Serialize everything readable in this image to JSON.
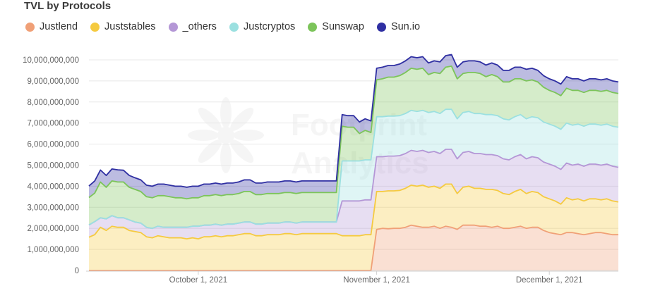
{
  "chart_data": {
    "type": "area",
    "title": "TVL by Protocols",
    "xlabel": "",
    "ylabel": "",
    "ylim": [
      0,
      10500000000
    ],
    "y_ticks": [
      "0",
      "1,000,000,000",
      "2,000,000,000",
      "3,000,000,000",
      "4,000,000,000",
      "5,000,000,000",
      "6,000,000,000",
      "7,000,000,000",
      "8,000,000,000",
      "9,000,000,000",
      "10,000,000,000"
    ],
    "x_ticks": [
      "October 1, 2021",
      "November 1, 2021",
      "December 1, 2021"
    ],
    "x_tick_values": [
      "2021-10-01",
      "2021-11-01",
      "2021-12-01"
    ],
    "x": [
      "2021-09-12",
      "2021-09-13",
      "2021-09-14",
      "2021-09-15",
      "2021-09-16",
      "2021-09-17",
      "2021-09-18",
      "2021-09-19",
      "2021-09-20",
      "2021-09-21",
      "2021-09-22",
      "2021-09-23",
      "2021-09-24",
      "2021-09-25",
      "2021-09-26",
      "2021-09-27",
      "2021-09-28",
      "2021-09-29",
      "2021-09-30",
      "2021-10-01",
      "2021-10-02",
      "2021-10-03",
      "2021-10-04",
      "2021-10-05",
      "2021-10-06",
      "2021-10-07",
      "2021-10-08",
      "2021-10-09",
      "2021-10-10",
      "2021-10-11",
      "2021-10-12",
      "2021-10-13",
      "2021-10-14",
      "2021-10-15",
      "2021-10-16",
      "2021-10-17",
      "2021-10-18",
      "2021-10-19",
      "2021-10-20",
      "2021-10-21",
      "2021-10-22",
      "2021-10-23",
      "2021-10-24",
      "2021-10-25",
      "2021-10-26",
      "2021-10-27",
      "2021-10-28",
      "2021-10-29",
      "2021-10-30",
      "2021-10-31",
      "2021-11-01",
      "2021-11-02",
      "2021-11-03",
      "2021-11-04",
      "2021-11-05",
      "2021-11-06",
      "2021-11-07",
      "2021-11-08",
      "2021-11-09",
      "2021-11-10",
      "2021-11-11",
      "2021-11-12",
      "2021-11-13",
      "2021-11-14",
      "2021-11-15",
      "2021-11-16",
      "2021-11-17",
      "2021-11-18",
      "2021-11-19",
      "2021-11-20",
      "2021-11-21",
      "2021-11-22",
      "2021-11-23",
      "2021-11-24",
      "2021-11-25",
      "2021-11-26",
      "2021-11-27",
      "2021-11-28",
      "2021-11-29",
      "2021-11-30",
      "2021-12-01",
      "2021-12-02",
      "2021-12-03",
      "2021-12-04",
      "2021-12-05",
      "2021-12-06",
      "2021-12-07",
      "2021-12-08",
      "2021-12-09",
      "2021-12-10",
      "2021-12-11",
      "2021-12-12",
      "2021-12-13"
    ],
    "series": [
      {
        "name": "Justlend",
        "color": "#f0a077",
        "values": [
          0,
          0,
          0,
          0,
          0,
          0,
          0,
          0,
          0,
          0,
          0,
          0,
          0,
          0,
          0,
          0,
          0,
          0,
          0,
          0,
          0,
          0,
          0,
          0,
          0,
          0,
          0,
          0,
          0,
          0,
          0,
          0,
          0,
          0,
          0,
          0,
          0,
          0,
          0,
          0,
          0,
          0,
          0,
          0,
          0,
          0,
          0,
          0,
          0,
          0,
          1950000000,
          2000000000,
          1980000000,
          2000000000,
          2000000000,
          2050000000,
          2150000000,
          2100000000,
          2050000000,
          2050000000,
          2100000000,
          2000000000,
          2100000000,
          2050000000,
          1950000000,
          2150000000,
          2150000000,
          2150000000,
          2100000000,
          2100000000,
          2050000000,
          2100000000,
          2000000000,
          2000000000,
          2050000000,
          2100000000,
          2000000000,
          2050000000,
          2050000000,
          1900000000,
          1800000000,
          1750000000,
          1700000000,
          1800000000,
          1800000000,
          1750000000,
          1700000000,
          1750000000,
          1800000000,
          1800000000,
          1750000000,
          1700000000,
          1700000000
        ]
      },
      {
        "name": "Juststables",
        "color": "#f5ca40",
        "values": [
          1580000000,
          1700000000,
          2050000000,
          1900000000,
          2100000000,
          2050000000,
          2050000000,
          1900000000,
          1850000000,
          1800000000,
          1600000000,
          1550000000,
          1650000000,
          1600000000,
          1550000000,
          1550000000,
          1550000000,
          1500000000,
          1550000000,
          1500000000,
          1600000000,
          1600000000,
          1650000000,
          1600000000,
          1650000000,
          1650000000,
          1700000000,
          1750000000,
          1750000000,
          1650000000,
          1650000000,
          1700000000,
          1700000000,
          1700000000,
          1750000000,
          1750000000,
          1700000000,
          1750000000,
          1750000000,
          1750000000,
          1750000000,
          1750000000,
          1750000000,
          1750000000,
          1650000000,
          1650000000,
          1650000000,
          1650000000,
          1700000000,
          1700000000,
          1800000000,
          1750000000,
          1800000000,
          1780000000,
          1800000000,
          1850000000,
          1900000000,
          1900000000,
          2000000000,
          1900000000,
          1900000000,
          1900000000,
          2000000000,
          2050000000,
          1700000000,
          1800000000,
          1850000000,
          1750000000,
          1800000000,
          1750000000,
          1800000000,
          1700000000,
          1650000000,
          1600000000,
          1700000000,
          1750000000,
          1650000000,
          1700000000,
          1650000000,
          1600000000,
          1600000000,
          1550000000,
          1450000000,
          1650000000,
          1550000000,
          1650000000,
          1600000000,
          1650000000,
          1600000000,
          1550000000,
          1650000000,
          1600000000,
          1550000000
        ]
      },
      {
        "name": "_others",
        "color": "#b497d6",
        "values": [
          580000000,
          620000000,
          450000000,
          550000000,
          500000000,
          450000000,
          450000000,
          500000000,
          450000000,
          450000000,
          450000000,
          450000000,
          450000000,
          450000000,
          500000000,
          500000000,
          500000000,
          550000000,
          550000000,
          600000000,
          550000000,
          550000000,
          550000000,
          550000000,
          550000000,
          550000000,
          550000000,
          550000000,
          550000000,
          550000000,
          550000000,
          550000000,
          550000000,
          550000000,
          550000000,
          550000000,
          550000000,
          550000000,
          550000000,
          550000000,
          550000000,
          550000000,
          550000000,
          550000000,
          1650000000,
          1650000000,
          1650000000,
          1650000000,
          1650000000,
          1650000000,
          1650000000,
          1650000000,
          1650000000,
          1650000000,
          1650000000,
          1650000000,
          1650000000,
          1650000000,
          1650000000,
          1650000000,
          1650000000,
          1650000000,
          1650000000,
          1650000000,
          1650000000,
          1650000000,
          1650000000,
          1650000000,
          1650000000,
          1650000000,
          1650000000,
          1650000000,
          1650000000,
          1650000000,
          1650000000,
          1650000000,
          1650000000,
          1650000000,
          1650000000,
          1650000000,
          1650000000,
          1650000000,
          1650000000,
          1650000000,
          1650000000,
          1650000000,
          1650000000,
          1650000000,
          1650000000,
          1650000000,
          1650000000,
          1650000000,
          1650000000
        ]
      },
      {
        "name": "Justcryptos",
        "color": "#9be0e0",
        "values": [
          0,
          0,
          0,
          0,
          0,
          0,
          0,
          0,
          0,
          0,
          0,
          0,
          0,
          0,
          0,
          0,
          0,
          0,
          0,
          0,
          0,
          0,
          0,
          0,
          0,
          0,
          0,
          0,
          0,
          0,
          0,
          0,
          0,
          0,
          0,
          0,
          0,
          0,
          0,
          0,
          0,
          0,
          0,
          0,
          1900000000,
          1900000000,
          1900000000,
          1900000000,
          1900000000,
          1900000000,
          1900000000,
          1900000000,
          1900000000,
          1900000000,
          1900000000,
          1900000000,
          1900000000,
          1900000000,
          1900000000,
          1900000000,
          1900000000,
          1900000000,
          1900000000,
          1900000000,
          1900000000,
          1900000000,
          1900000000,
          1900000000,
          1900000000,
          1900000000,
          1900000000,
          1900000000,
          1900000000,
          1900000000,
          1900000000,
          1900000000,
          1900000000,
          1900000000,
          1900000000,
          1900000000,
          1900000000,
          1900000000,
          1900000000,
          1900000000,
          1900000000,
          1900000000,
          1900000000,
          1900000000,
          1900000000,
          1900000000,
          1900000000,
          1900000000,
          1900000000
        ]
      },
      {
        "name": "Sunswap",
        "color": "#7cc45a",
        "values": [
          1300000000,
          1350000000,
          1700000000,
          1500000000,
          1650000000,
          1700000000,
          1700000000,
          1550000000,
          1550000000,
          1500000000,
          1450000000,
          1450000000,
          1450000000,
          1500000000,
          1450000000,
          1400000000,
          1400000000,
          1350000000,
          1350000000,
          1350000000,
          1400000000,
          1400000000,
          1400000000,
          1400000000,
          1400000000,
          1400000000,
          1400000000,
          1450000000,
          1450000000,
          1400000000,
          1400000000,
          1400000000,
          1400000000,
          1400000000,
          1400000000,
          1400000000,
          1400000000,
          1400000000,
          1400000000,
          1400000000,
          1400000000,
          1400000000,
          1400000000,
          1400000000,
          1650000000,
          1600000000,
          1600000000,
          1300000000,
          1400000000,
          1300000000,
          1750000000,
          1800000000,
          1850000000,
          1850000000,
          1900000000,
          1950000000,
          2000000000,
          2000000000,
          2000000000,
          1800000000,
          1850000000,
          1900000000,
          2000000000,
          2050000000,
          1900000000,
          1850000000,
          1850000000,
          1950000000,
          1900000000,
          1800000000,
          1900000000,
          1850000000,
          1750000000,
          1800000000,
          1800000000,
          1700000000,
          1800000000,
          1750000000,
          1700000000,
          1650000000,
          1600000000,
          1600000000,
          1600000000,
          1650000000,
          1650000000,
          1600000000,
          1600000000,
          1600000000,
          1600000000,
          1600000000,
          1600000000,
          1600000000,
          1600000000
        ]
      },
      {
        "name": "Sun.io",
        "color": "#2f2fa2",
        "values": [
          550000000,
          580000000,
          570000000,
          560000000,
          570000000,
          580000000,
          560000000,
          560000000,
          550000000,
          550000000,
          550000000,
          550000000,
          550000000,
          550000000,
          550000000,
          550000000,
          550000000,
          550000000,
          550000000,
          550000000,
          550000000,
          550000000,
          550000000,
          550000000,
          550000000,
          550000000,
          550000000,
          550000000,
          550000000,
          550000000,
          550000000,
          550000000,
          550000000,
          550000000,
          550000000,
          550000000,
          550000000,
          550000000,
          550000000,
          550000000,
          550000000,
          550000000,
          550000000,
          550000000,
          550000000,
          550000000,
          550000000,
          550000000,
          550000000,
          550000000,
          550000000,
          550000000,
          550000000,
          550000000,
          550000000,
          550000000,
          550000000,
          550000000,
          550000000,
          550000000,
          550000000,
          550000000,
          550000000,
          550000000,
          550000000,
          550000000,
          550000000,
          550000000,
          550000000,
          550000000,
          550000000,
          550000000,
          550000000,
          550000000,
          550000000,
          550000000,
          550000000,
          550000000,
          550000000,
          550000000,
          550000000,
          550000000,
          550000000,
          550000000,
          550000000,
          550000000,
          550000000,
          550000000,
          550000000,
          550000000,
          550000000,
          550000000,
          550000000
        ]
      }
    ],
    "watermark": "Footprint Analytics",
    "grid": true,
    "legend_position": "top-left"
  }
}
